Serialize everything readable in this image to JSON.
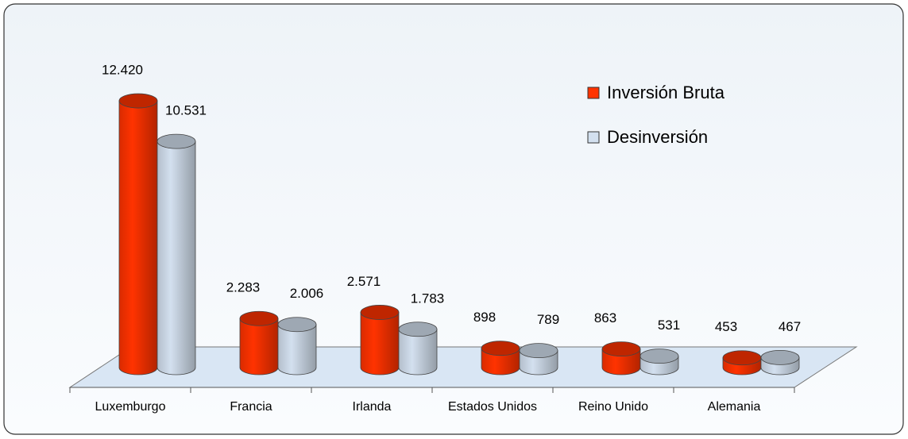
{
  "chart_data": {
    "type": "bar3d",
    "categories": [
      "Luxemburgo",
      "Francia",
      "Irlanda",
      "Estados Unidos",
      "Reino Unido",
      "Alemania"
    ],
    "series": [
      {
        "name": "Inversión Bruta",
        "color": "#ff3300",
        "values": [
          12420,
          2283,
          2571,
          898,
          863,
          453
        ],
        "value_labels": [
          "12.420",
          "2.283",
          "2.571",
          "898",
          "863",
          "453"
        ]
      },
      {
        "name": "Desinversión",
        "color": "#d3e0ef",
        "values": [
          10531,
          2006,
          1783,
          789,
          531,
          467
        ],
        "value_labels": [
          "10.531",
          "2.006",
          "1.783",
          "789",
          "531",
          "467"
        ]
      }
    ],
    "legend": "top-right"
  }
}
